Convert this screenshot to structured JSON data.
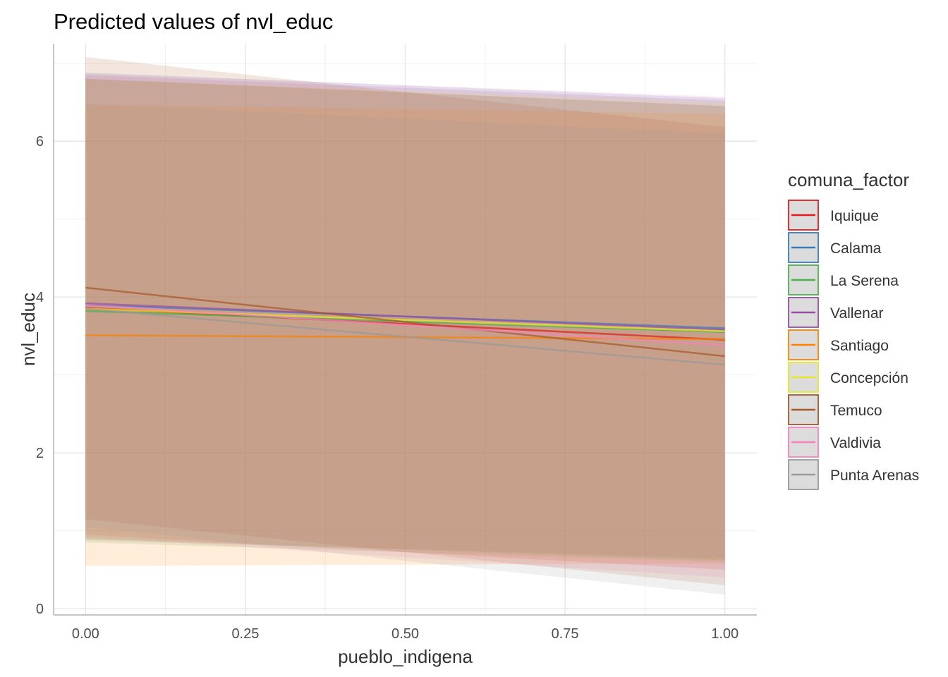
{
  "chart_data": {
    "type": "line",
    "title": "Predicted values of nvl_educ",
    "xlabel": "pueblo_indigena",
    "ylabel": "nvl_educ",
    "xlim": [
      -0.05,
      1.05
    ],
    "ylim": [
      -0.08,
      7.25
    ],
    "x_ticks": [
      "0.00",
      "0.25",
      "0.50",
      "0.75",
      "1.00"
    ],
    "x_tick_values": [
      0,
      0.25,
      0.5,
      0.75,
      1
    ],
    "y_ticks": [
      "0",
      "2",
      "4",
      "6"
    ],
    "y_tick_values": [
      0,
      2,
      4,
      6
    ],
    "grid": true,
    "legend_title": "comuna_factor",
    "legend_position": "right",
    "series": [
      {
        "name": "Iquique",
        "color": "#E41A1C",
        "x": [
          0,
          1
        ],
        "y": [
          3.86,
          3.45
        ],
        "lower": [
          0.95,
          0.5
        ],
        "upper": [
          6.8,
          6.45
        ]
      },
      {
        "name": "Calama",
        "color": "#377EB8",
        "x": [
          0,
          1
        ],
        "y": [
          3.9,
          3.6
        ],
        "lower": [
          0.9,
          0.62
        ],
        "upper": [
          6.88,
          6.55
        ]
      },
      {
        "name": "La Serena",
        "color": "#4DAF4A",
        "x": [
          0,
          1
        ],
        "y": [
          3.82,
          3.55
        ],
        "lower": [
          0.85,
          0.6
        ],
        "upper": [
          6.8,
          6.45
        ]
      },
      {
        "name": "Vallenar",
        "color": "#984EA3",
        "x": [
          0,
          1
        ],
        "y": [
          3.92,
          3.58
        ],
        "lower": [
          0.88,
          0.65
        ],
        "upper": [
          6.85,
          6.52
        ]
      },
      {
        "name": "Santiago",
        "color": "#FF7F00",
        "x": [
          0,
          1
        ],
        "y": [
          3.51,
          3.46
        ],
        "lower": [
          0.55,
          0.58
        ],
        "upper": [
          6.47,
          6.35
        ]
      },
      {
        "name": "Concepción",
        "color": "#E6E62E",
        "x": [
          0,
          1
        ],
        "y": [
          3.85,
          3.56
        ],
        "lower": [
          0.9,
          0.62
        ],
        "upper": [
          6.8,
          6.5
        ]
      },
      {
        "name": "Temuco",
        "color": "#A65628",
        "x": [
          0,
          1
        ],
        "y": [
          4.12,
          3.24
        ],
        "lower": [
          1.15,
          0.3
        ],
        "upper": [
          7.08,
          6.18
        ]
      },
      {
        "name": "Valdivia",
        "color": "#F781BF",
        "x": [
          0,
          1
        ],
        "y": [
          3.9,
          3.38
        ],
        "lower": [
          0.92,
          0.4
        ],
        "upper": [
          6.87,
          6.57
        ]
      },
      {
        "name": "Punta Arenas",
        "color": "#999999",
        "x": [
          0,
          1
        ],
        "y": [
          3.85,
          3.13
        ],
        "lower": [
          1.05,
          0.18
        ],
        "upper": [
          6.48,
          6.1
        ]
      }
    ]
  }
}
